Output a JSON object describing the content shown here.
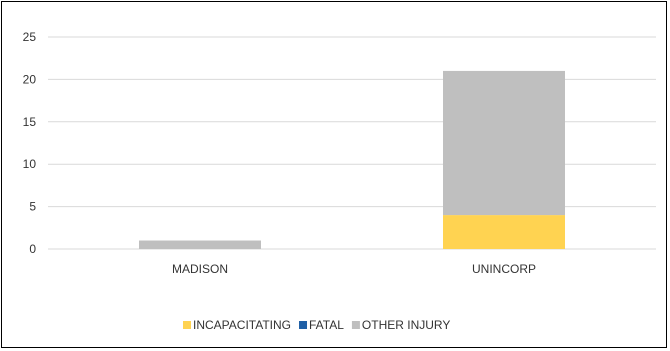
{
  "chart_data": {
    "type": "bar",
    "stacked": true,
    "categories": [
      "MADISON",
      "UNINCORP"
    ],
    "series": [
      {
        "name": "INCAPACITATING",
        "color": "#FFD351",
        "values": [
          0,
          4
        ]
      },
      {
        "name": "FATAL",
        "color": "#1F5FA6",
        "values": [
          0,
          0
        ]
      },
      {
        "name": "OTHER INJURY",
        "color": "#BFBFBF",
        "values": [
          1,
          17
        ]
      }
    ],
    "yticks": [
      0,
      5,
      10,
      15,
      20,
      25
    ],
    "ylim": [
      0,
      25
    ],
    "grid": true,
    "legend_position": "bottom",
    "title": "",
    "xlabel": "",
    "ylabel": ""
  }
}
